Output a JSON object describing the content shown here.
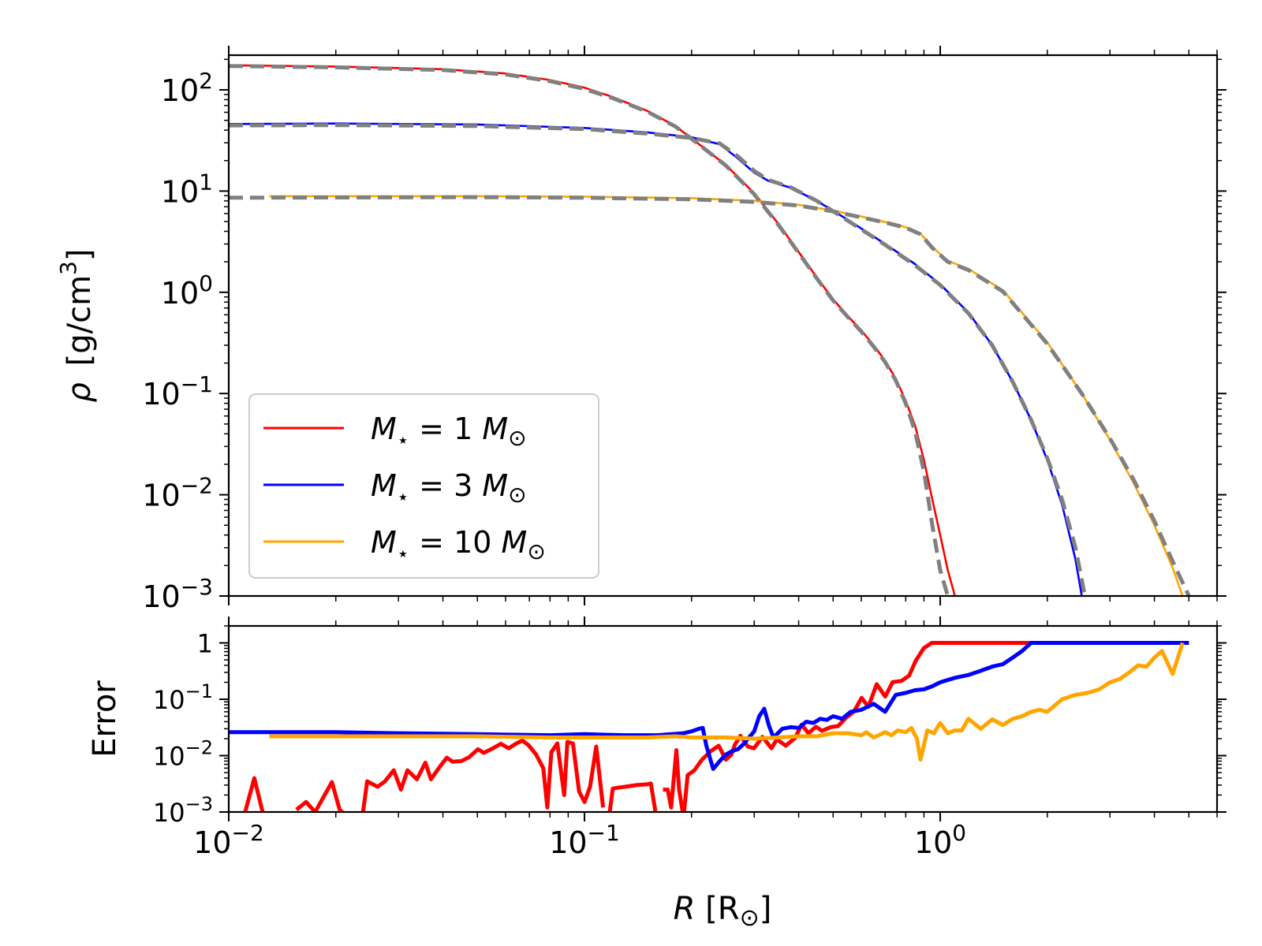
{
  "chart_data": [
    {
      "type": "line",
      "panel": "top",
      "xscale": "log",
      "yscale": "log",
      "xlim": [
        0.01,
        6
      ],
      "ylim": [
        0.001,
        220
      ],
      "ylabel": "ρ [g/cm³]",
      "ylabel_parts": {
        "rho": "ρ",
        "unit": "[g/cm",
        "exp": "3",
        "close": "]"
      },
      "yticks": [
        {
          "value": 100,
          "base": "10",
          "exp": "2"
        },
        {
          "value": 10,
          "base": "10",
          "exp": "1"
        },
        {
          "value": 1,
          "base": "10",
          "exp": "0"
        },
        {
          "value": 0.1,
          "base": "10",
          "exp": "−1"
        },
        {
          "value": 0.01,
          "base": "10",
          "exp": "−2"
        },
        {
          "value": 0.001,
          "base": "10",
          "exp": "−3"
        }
      ],
      "legend": {
        "placement": "lower-left",
        "entries": [
          {
            "series": "M1",
            "label_m": "M",
            "label_sub": "⋆",
            "label_eq": " = 1 ",
            "label_msun": "M",
            "label_sun": "⊙"
          },
          {
            "series": "M3",
            "label_m": "M",
            "label_sub": "⋆",
            "label_eq": " = 3 ",
            "label_msun": "M",
            "label_sun": "⊙"
          },
          {
            "series": "M10",
            "label_m": "M",
            "label_sub": "⋆",
            "label_eq": " = 10 ",
            "label_msun": "M",
            "label_sun": "⊙"
          }
        ]
      },
      "series": [
        {
          "name": "M1",
          "label": "M⋆ = 1 M⊙",
          "color": "#ff0000",
          "x": [
            0.01,
            0.02,
            0.04,
            0.06,
            0.08,
            0.1,
            0.12,
            0.15,
            0.18,
            0.21,
            0.25,
            0.3,
            0.35,
            0.4,
            0.45,
            0.5,
            0.55,
            0.6,
            0.65,
            0.7,
            0.75,
            0.8,
            0.85,
            0.9,
            0.95,
            1.0,
            1.05,
            1.1
          ],
          "y": [
            175,
            170,
            160,
            145,
            125,
            105,
            85,
            62,
            44,
            29,
            18,
            9.5,
            4.8,
            2.5,
            1.4,
            0.85,
            0.58,
            0.42,
            0.3,
            0.21,
            0.14,
            0.085,
            0.048,
            0.022,
            0.009,
            0.004,
            0.0018,
            0.001
          ]
        },
        {
          "name": "M3",
          "label": "M⋆ = 3 M⊙",
          "color": "#0000ff",
          "x": [
            0.01,
            0.02,
            0.05,
            0.1,
            0.15,
            0.2,
            0.24,
            0.27,
            0.3,
            0.33,
            0.38,
            0.45,
            0.55,
            0.7,
            0.85,
            1.0,
            1.2,
            1.4,
            1.6,
            1.8,
            2.0,
            2.2,
            2.4,
            2.5
          ],
          "y": [
            46,
            46.5,
            45.5,
            42,
            38,
            34,
            29,
            21,
            15.2,
            12.5,
            10.8,
            8,
            5.2,
            3,
            1.9,
            1.2,
            0.63,
            0.3,
            0.13,
            0.055,
            0.022,
            0.008,
            0.0023,
            0.001
          ]
        },
        {
          "name": "M10",
          "label": "M⋆ = 10 M⊙",
          "color": "#ffa500",
          "x": [
            0.013,
            0.05,
            0.1,
            0.2,
            0.3,
            0.4,
            0.5,
            0.6,
            0.7,
            0.8,
            0.88,
            0.95,
            1.05,
            1.2,
            1.5,
            2.0,
            2.5,
            3.0,
            3.5,
            4.0,
            4.5,
            4.8
          ],
          "y": [
            8.9,
            8.9,
            8.8,
            8.5,
            8,
            7.3,
            6.4,
            5.6,
            4.95,
            4.4,
            3.8,
            2.8,
            2.05,
            1.7,
            1.05,
            0.32,
            0.1,
            0.035,
            0.013,
            0.005,
            0.0019,
            0.001
          ]
        },
        {
          "name": "M1-fit",
          "label": "",
          "color": "#808080",
          "dashed": true,
          "x": [
            0.01,
            0.02,
            0.04,
            0.06,
            0.08,
            0.1,
            0.12,
            0.15,
            0.18,
            0.21,
            0.25,
            0.3,
            0.35,
            0.4,
            0.45,
            0.5,
            0.55,
            0.6,
            0.65,
            0.7,
            0.75,
            0.8,
            0.85,
            0.9,
            0.95,
            1.0,
            1.05,
            1.1
          ],
          "y": [
            172,
            167,
            157,
            142,
            122,
            102,
            83,
            61,
            43.5,
            28.8,
            17.8,
            9.3,
            4.7,
            2.45,
            1.37,
            0.83,
            0.57,
            0.41,
            0.29,
            0.205,
            0.135,
            0.08,
            0.042,
            0.017,
            0.005,
            0.0018,
            0.001,
            0.001
          ]
        },
        {
          "name": "M3-fit",
          "label": "",
          "color": "#808080",
          "dashed": true,
          "x": [
            0.01,
            0.02,
            0.05,
            0.1,
            0.15,
            0.2,
            0.24,
            0.27,
            0.3,
            0.33,
            0.38,
            0.45,
            0.55,
            0.7,
            0.85,
            1.0,
            1.2,
            1.4,
            1.6,
            1.8,
            2.0,
            2.2,
            2.4,
            2.55
          ],
          "y": [
            44.5,
            44.8,
            44,
            41,
            37,
            33.5,
            29.5,
            22,
            15.8,
            12.8,
            10.9,
            8,
            5.1,
            2.95,
            1.85,
            1.18,
            0.62,
            0.3,
            0.13,
            0.055,
            0.023,
            0.009,
            0.003,
            0.001
          ]
        },
        {
          "name": "M10-fit",
          "label": "",
          "color": "#808080",
          "dashed": true,
          "x": [
            0.01,
            0.05,
            0.1,
            0.2,
            0.3,
            0.4,
            0.5,
            0.6,
            0.7,
            0.8,
            0.88,
            0.95,
            1.05,
            1.2,
            1.5,
            2.0,
            2.5,
            3.0,
            3.5,
            4.0,
            4.5,
            5.0
          ],
          "y": [
            8.6,
            8.7,
            8.6,
            8.3,
            7.8,
            7.2,
            6.3,
            5.5,
            4.9,
            4.35,
            3.75,
            2.75,
            2.0,
            1.66,
            1.02,
            0.31,
            0.1,
            0.036,
            0.014,
            0.0055,
            0.0022,
            0.001
          ]
        }
      ]
    },
    {
      "type": "line",
      "panel": "bottom",
      "xscale": "log",
      "yscale": "log",
      "xlim": [
        0.01,
        6
      ],
      "ylim": [
        0.001,
        2
      ],
      "xlabel": "R [R⊙]",
      "xlabel_parts": {
        "r": "R",
        "unit": " [R",
        "sun": "⊙",
        "close": "]"
      },
      "ylabel": "Error",
      "xticks": [
        {
          "value": 0.01,
          "base": "10",
          "exp": "−2"
        },
        {
          "value": 0.1,
          "base": "10",
          "exp": "−1"
        },
        {
          "value": 1,
          "base": "10",
          "exp": "0"
        }
      ],
      "yticks": [
        {
          "value": 1,
          "base": "1",
          "exp": ""
        },
        {
          "value": 0.1,
          "base": "10",
          "exp": "−1"
        },
        {
          "value": 0.01,
          "base": "10",
          "exp": "−2"
        },
        {
          "value": 0.001,
          "base": "10",
          "exp": "−3"
        }
      ],
      "series": [
        {
          "name": "M1-error",
          "color": "#ff0000",
          "segments": [
            {
              "x": [
                0.0108,
                0.0118,
                0.0125
              ],
              "y": [
                0.0001,
                0.004,
                0.0009
              ]
            },
            {
              "x": [
                0.0155,
                0.0165,
                0.0175,
                0.0195,
                0.0205,
                0.0212
              ],
              "y": [
                0.0011,
                0.0015,
                0.001,
                0.0034,
                0.0011,
                0.0009
              ]
            },
            {
              "x": [
                0.0238,
                0.0245,
                0.0262,
                0.0275,
                0.0291,
                0.0305,
                0.0318,
                0.0338,
                0.0357,
                0.037,
                0.0391,
                0.041,
                0.0426,
                0.0451,
                0.0473,
                0.0502,
                0.0521,
                0.0553,
                0.0582,
                0.0612,
                0.0644,
                0.0669,
                0.0697,
                0.0731,
                0.0766,
                0.0786,
                0.0807,
                0.0839,
                0.0877,
                0.0895,
                0.0928,
                0.0966,
                0.1001,
                0.1037,
                0.1079,
                0.1128
              ],
              "y": [
                0.0009,
                0.0035,
                0.0028,
                0.0035,
                0.0055,
                0.0025,
                0.0055,
                0.0038,
                0.0075,
                0.0038,
                0.0062,
                0.0092,
                0.0078,
                0.008,
                0.0093,
                0.013,
                0.0112,
                0.0135,
                0.0162,
                0.0135,
                0.0165,
                0.0185,
                0.0152,
                0.0105,
                0.006,
                0.0012,
                0.0115,
                0.0165,
                0.002,
                0.0175,
                0.0165,
                0.0023,
                0.0015,
                0.0028,
                0.0145,
                0.0012
              ]
            },
            {
              "x": [
                0.1175,
                0.1201,
                0.124,
                0.13,
                0.14,
                0.15,
                0.1537,
                0.1588
              ],
              "y": [
                0.0009,
                0.0026,
                0.0027,
                0.0028,
                0.003,
                0.0031,
                0.0032,
                0.0009
              ]
            },
            {
              "x": [
                0.1662,
                0.1714,
                0.1752,
                0.1812,
                0.1845,
                0.1899,
                0.195,
                0.2037,
                0.214,
                0.2265,
                0.2384,
                0.2496,
                0.2591,
                0.2645,
                0.2744,
                0.288,
                0.2995,
                0.3165,
                0.3354,
                0.3473,
                0.3677,
                0.3907,
                0.4077,
                0.4261,
                0.4473,
                0.465,
                0.4919,
                0.5163,
                0.5434,
                0.5718,
                0.6012,
                0.6278,
                0.6628,
                0.7003,
                0.7348,
                0.7779,
                0.8182,
                0.8535,
                0.8985,
                0.9468,
                1.0,
                1.5,
                2.0,
                5.0
              ],
              "y": [
                0.0025,
                0.0025,
                0.0012,
                0.0125,
                0.0025,
                0.0008,
                0.0045,
                0.0055,
                0.0085,
                0.012,
                0.015,
                0.0085,
                0.0105,
                0.0155,
                0.0225,
                0.0145,
                0.0135,
                0.0215,
                0.0135,
                0.0195,
                0.015,
                0.0205,
                0.0355,
                0.025,
                0.0325,
                0.0275,
                0.032,
                0.0335,
                0.047,
                0.0605,
                0.106,
                0.0735,
                0.185,
                0.1115,
                0.202,
                0.2115,
                0.2635,
                0.4815,
                0.805,
                1,
                1,
                1,
                1,
                1
              ]
            }
          ]
        },
        {
          "name": "M3-error",
          "color": "#0000ff",
          "segments": [
            {
              "x": [
                0.01,
                0.02,
                0.03,
                0.05,
                0.08,
                0.1,
                0.13,
                0.16,
                0.19,
                0.2,
                0.21,
                0.215,
                0.22,
                0.23,
                0.24,
                0.25,
                0.26,
                0.27,
                0.28,
                0.29,
                0.3,
                0.31,
                0.32,
                0.33,
                0.34,
                0.36,
                0.38,
                0.4,
                0.42,
                0.44,
                0.46,
                0.48,
                0.5,
                0.53,
                0.56,
                0.6,
                0.65,
                0.7,
                0.75,
                0.8,
                0.85,
                0.9,
                0.95,
                1.0,
                1.1,
                1.2,
                1.3,
                1.4,
                1.5,
                1.6,
                1.7,
                1.8,
                2.0,
                2.5,
                3.0,
                4.0,
                5.0
              ],
              "y": [
                0.026,
                0.026,
                0.025,
                0.024,
                0.023,
                0.024,
                0.023,
                0.023,
                0.025,
                0.027,
                0.03,
                0.031,
                0.015,
                0.0058,
                0.008,
                0.0105,
                0.012,
                0.013,
                0.016,
                0.021,
                0.027,
                0.05,
                0.068,
                0.034,
                0.021,
                0.03,
                0.032,
                0.031,
                0.04,
                0.038,
                0.045,
                0.043,
                0.05,
                0.045,
                0.06,
                0.065,
                0.083,
                0.06,
                0.12,
                0.13,
                0.145,
                0.15,
                0.17,
                0.2,
                0.24,
                0.27,
                0.32,
                0.38,
                0.42,
                0.55,
                0.72,
                1.0,
                1.0,
                1.0,
                1.0,
                1.0,
                1.0
              ]
            }
          ]
        },
        {
          "name": "M10-error",
          "color": "#ffa500",
          "segments": [
            {
              "x": [
                0.013,
                0.02,
                0.03,
                0.05,
                0.08,
                0.1,
                0.12,
                0.15,
                0.18,
                0.2,
                0.25,
                0.3,
                0.35,
                0.4,
                0.45,
                0.5,
                0.55,
                0.6,
                0.62,
                0.65,
                0.7,
                0.73,
                0.76,
                0.8,
                0.83,
                0.86,
                0.88,
                0.92,
                0.96,
                1.0,
                1.05,
                1.1,
                1.15,
                1.2,
                1.3,
                1.4,
                1.5,
                1.6,
                1.7,
                1.8,
                1.9,
                2.0,
                2.2,
                2.4,
                2.6,
                2.8,
                3.0,
                3.2,
                3.4,
                3.6,
                3.8,
                4.0,
                4.2,
                4.5,
                4.8
              ],
              "y": [
                0.022,
                0.022,
                0.022,
                0.022,
                0.021,
                0.021,
                0.021,
                0.021,
                0.022,
                0.021,
                0.021,
                0.02,
                0.021,
                0.022,
                0.022,
                0.025,
                0.025,
                0.023,
                0.026,
                0.021,
                0.026,
                0.023,
                0.028,
                0.026,
                0.031,
                0.02,
                0.0085,
                0.028,
                0.025,
                0.038,
                0.025,
                0.028,
                0.028,
                0.045,
                0.03,
                0.044,
                0.035,
                0.045,
                0.05,
                0.06,
                0.065,
                0.06,
                0.1,
                0.12,
                0.13,
                0.15,
                0.2,
                0.23,
                0.3,
                0.4,
                0.38,
                0.55,
                0.72,
                0.28,
                1.0
              ]
            }
          ]
        }
      ]
    }
  ],
  "labels": {
    "legend_aria": "legend"
  }
}
